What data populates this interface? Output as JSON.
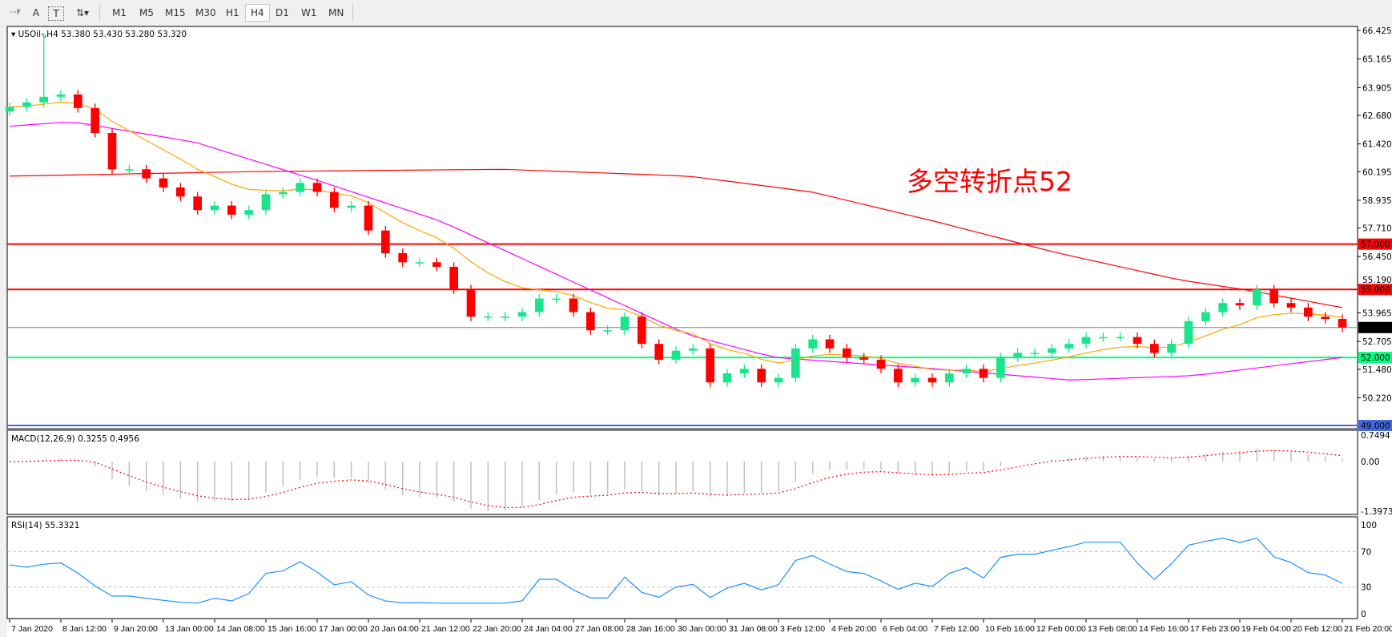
{
  "toolbar": {
    "tools": [
      {
        "name": "grid-f-icon",
        "glyph": "⋯F"
      },
      {
        "name": "text-tool",
        "glyph": "A"
      },
      {
        "name": "text-label-tool",
        "glyph": "T"
      },
      {
        "name": "shapes-tool",
        "glyph": "⇅▾"
      }
    ],
    "timeframes": [
      "M1",
      "M5",
      "M15",
      "M30",
      "H1",
      "H4",
      "D1",
      "W1",
      "MN"
    ],
    "active_timeframe": "H4"
  },
  "chart_data": {
    "type": "candlestick",
    "title": "USOil-,H4  53.380 53.430 53.280 53.320",
    "annotation": "多空转折点52",
    "colors": {
      "bull": "#19e68c",
      "bear": "#ff0000",
      "ma_fast": "#ffa500",
      "ma_mid": "#ff00ff",
      "ma_slow": "#ff0000",
      "rsi": "#1e90ff",
      "macd_hist": "#c0c0c0",
      "macd_signal": "#ff0000"
    },
    "y_ticks": [
      "66.425",
      "65.165",
      "63.905",
      "62.680",
      "61.420",
      "60.195",
      "58.935",
      "57.710",
      "56.450",
      "55.190",
      "53.965",
      "52.705",
      "51.480",
      "50.220"
    ],
    "ylim": [
      49.0,
      66.425
    ],
    "x_tick_labels": [
      "7 Jan 2020",
      "8 Jan 12:00",
      "9 Jan 20:00",
      "13 Jan 00:00",
      "14 Jan 08:00",
      "15 Jan 16:00",
      "17 Jan 00:00",
      "20 Jan 04:00",
      "21 Jan 12:00",
      "22 Jan 20:00",
      "24 Jan 04:00",
      "27 Jan 08:00",
      "28 Jan 16:00",
      "30 Jan 00:00",
      "31 Jan 08:00",
      "3 Feb 12:00",
      "4 Feb 20:00",
      "6 Feb 04:00",
      "7 Feb 12:00",
      "10 Feb 16:00",
      "12 Feb 00:00",
      "13 Feb 08:00",
      "14 Feb 16:00",
      "17 Feb 23:00",
      "19 Feb 04:00",
      "20 Feb 12:00",
      "21 Feb 20:00"
    ],
    "closes": [
      63.05,
      63.25,
      63.5,
      63.6,
      63.0,
      61.9,
      60.3,
      60.3,
      59.9,
      59.5,
      59.1,
      58.5,
      58.7,
      58.3,
      58.5,
      59.2,
      59.3,
      59.7,
      59.3,
      58.6,
      58.7,
      57.6,
      56.6,
      56.2,
      56.2,
      56.0,
      55.0,
      53.8,
      53.8,
      53.8,
      54.0,
      54.6,
      54.6,
      54.0,
      53.2,
      53.2,
      53.8,
      52.6,
      51.9,
      52.3,
      52.4,
      50.9,
      51.3,
      51.5,
      50.9,
      51.1,
      52.4,
      52.8,
      52.4,
      52.0,
      51.9,
      51.5,
      50.9,
      51.1,
      50.9,
      51.3,
      51.5,
      51.1,
      52.0,
      52.2,
      52.2,
      52.4,
      52.6,
      52.9,
      52.9,
      52.9,
      52.6,
      52.2,
      52.6,
      53.6,
      54.0,
      54.4,
      54.3,
      55.0,
      54.4,
      54.2,
      53.8,
      53.7,
      53.32
    ],
    "spike_high": 65.0,
    "ma_slow": [
      [
        0,
        60.0
      ],
      [
        20,
        60.2
      ],
      [
        40,
        60.3
      ],
      [
        55,
        60.0
      ],
      [
        65,
        59.3
      ],
      [
        75,
        58.0
      ],
      [
        85,
        56.6
      ],
      [
        95,
        55.4
      ],
      [
        100,
        55.0
      ],
      [
        108,
        54.2
      ]
    ],
    "ma_mid": [
      [
        0,
        62.2
      ],
      [
        5,
        62.4
      ],
      [
        15,
        61.5
      ],
      [
        25,
        59.8
      ],
      [
        35,
        58.0
      ],
      [
        45,
        55.5
      ],
      [
        55,
        53.0
      ],
      [
        62,
        52.0
      ],
      [
        75,
        51.5
      ],
      [
        86,
        51.0
      ],
      [
        96,
        51.2
      ],
      [
        108,
        52.0
      ]
    ],
    "horizontal_lines": [
      {
        "price": "57.000",
        "color": "#ff0000",
        "label_text": "#ffffff"
      },
      {
        "price": "55.000",
        "color": "#ff0000",
        "label_text": "#ffffff"
      },
      {
        "price": "53.320",
        "color": "#808080",
        "label_bg": "#000000",
        "label_text": "#ffffff"
      },
      {
        "price": "52.000",
        "color": "#00ff7f",
        "label_text": "#ffffff"
      },
      {
        "price": "49.000",
        "color": "#4169e1",
        "label_text": "#ffffff"
      }
    ],
    "macd": {
      "label": "MACD(12,26,9) 0.3255 0.4956",
      "ticks": [
        "0.7494",
        "0.00",
        "-1.3973"
      ],
      "ylim": [
        -1.3973,
        0.7494
      ]
    },
    "rsi": {
      "label": "RSI(14) 55.3321",
      "ticks": [
        "100",
        "70",
        "30",
        "0"
      ],
      "levels": [
        70,
        30
      ],
      "ylim": [
        0,
        100
      ]
    }
  }
}
